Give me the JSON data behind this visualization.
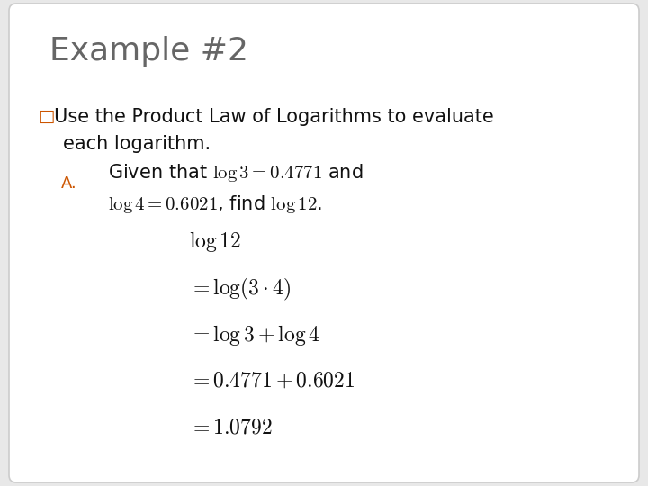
{
  "title": "Example #2",
  "title_fontsize": 26,
  "title_color": "#666666",
  "bg_color": "#e8e8e8",
  "box_color": "#ffffff",
  "box_edge_color": "#cccccc",
  "bullet_color": "#cc5500",
  "instruction_line1": "□Use the Product Law of Logarithms to evaluate",
  "instruction_line2": "  each logarithm.",
  "instruction_fontsize": 15,
  "label_A": "A.",
  "label_A_color": "#cc5500",
  "label_A_fontsize": 13,
  "given_line1": "Given that $\\mathregular{log}\\,3 = 0.4771$ and",
  "given_line2": "$\\mathregular{log}\\,4 = 0.6021$, find $\\mathregular{log}\\,12$.",
  "given_fontsize": 15,
  "solution_lines": [
    "$\\mathregular{log}\\,12$",
    "$= \\mathregular{log}(3 \\cdot 4)$",
    "$= \\mathregular{log}\\,3 + \\mathregular{log}\\,4$",
    "$= 0.4771 + 0.6021$",
    "$= 1.0792$"
  ],
  "solution_fontsize": 17
}
